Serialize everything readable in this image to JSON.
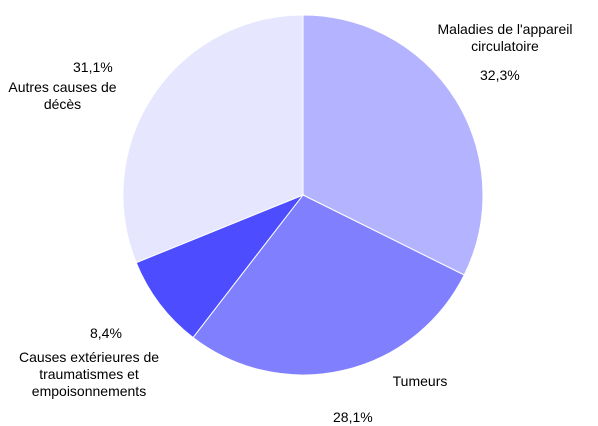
{
  "chart_data": {
    "type": "pie",
    "categories": [
      "Maladies de l'appareil circulatoire",
      "Tumeurs",
      "Causes extérieures de traumatismes et empoisonnements",
      "Autres causes de décès"
    ],
    "values": [
      32.3,
      28.1,
      8.4,
      31.1
    ],
    "value_labels": [
      "32,3%",
      "28,1%",
      "8,4%",
      "31,1%"
    ],
    "colors": [
      "#b3b3ff",
      "#8080ff",
      "#4d4dff",
      "#e6e6ff"
    ]
  }
}
